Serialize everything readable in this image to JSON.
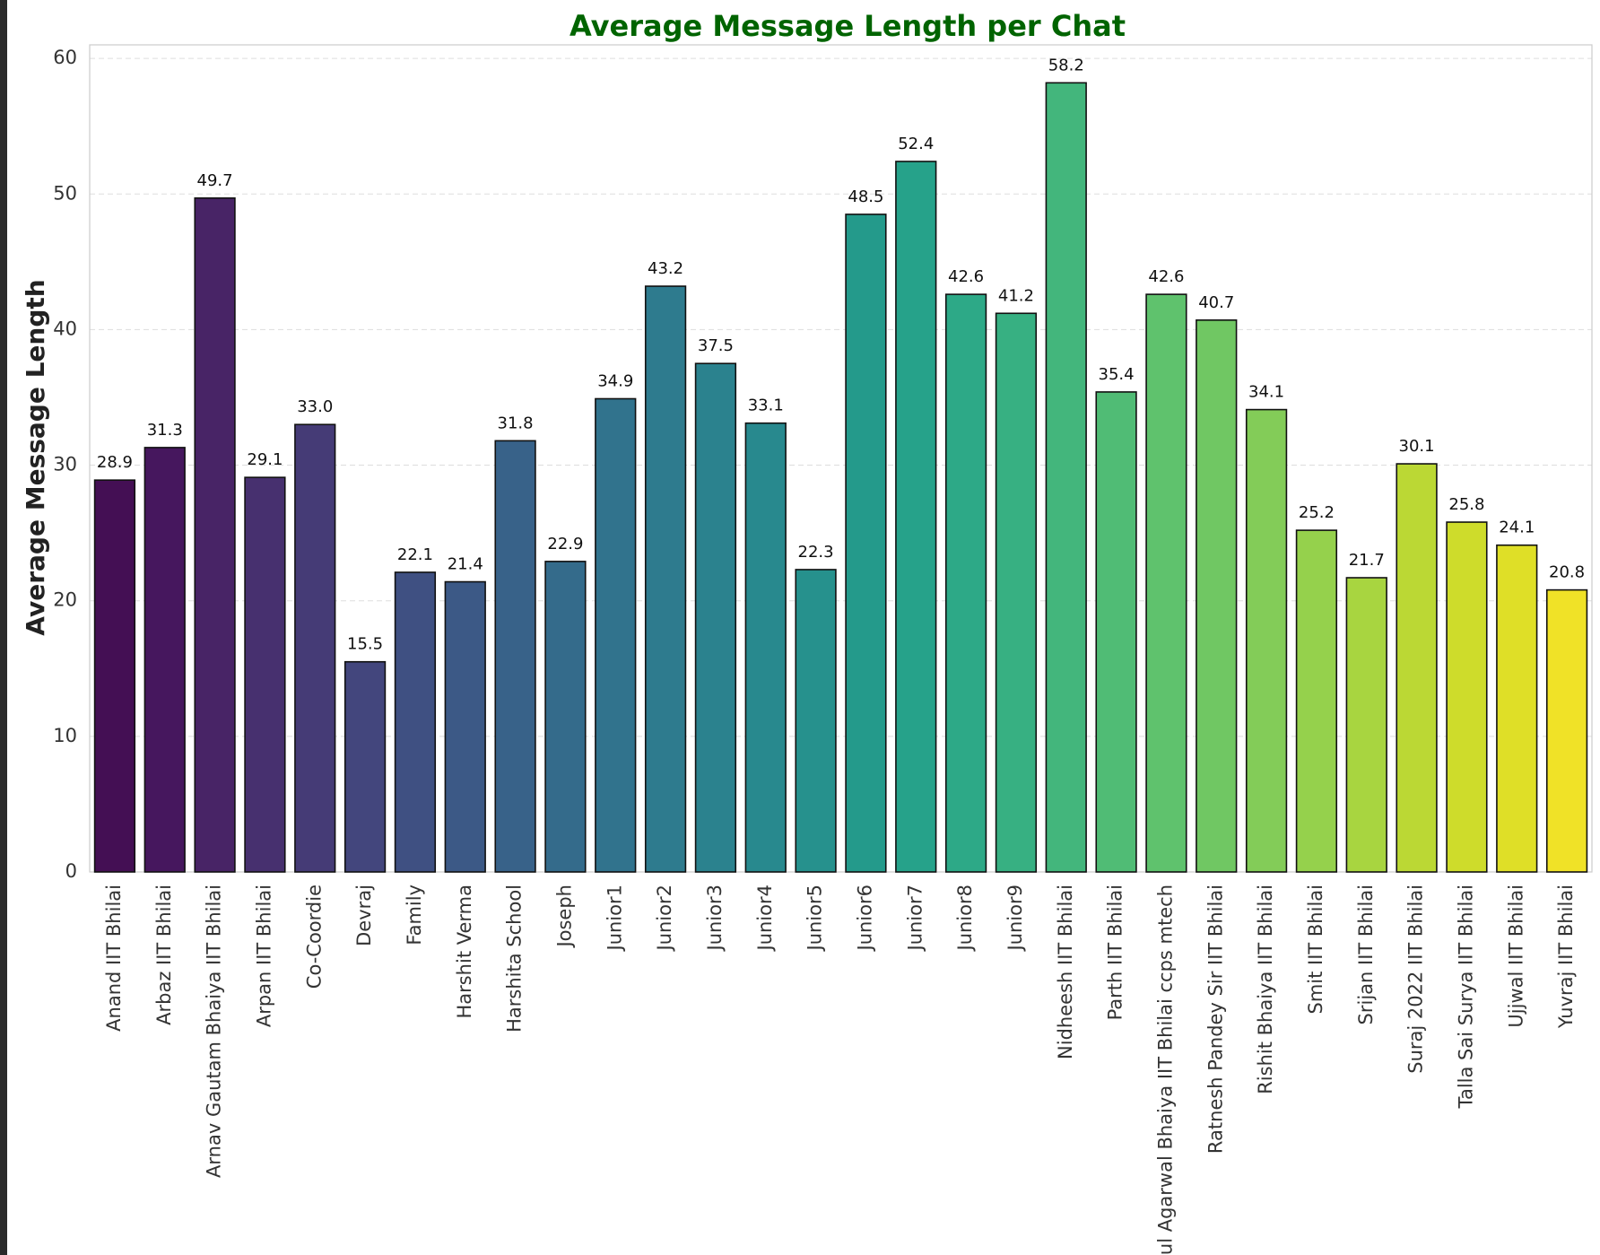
{
  "chart_data": {
    "type": "bar",
    "title": "Average Message Length per Chat",
    "title_color": "#006400",
    "xlabel": "",
    "ylabel": "Average Message Length",
    "ylim": [
      0,
      61
    ],
    "yticks": [
      0,
      10,
      20,
      30,
      40,
      50,
      60
    ],
    "grid": "y-dashed",
    "palette": "viridis",
    "categories": [
      "Anand IIT Bhilai",
      "Arbaz IIT Bhilai",
      "Arnav Gautam Bhaiya IIT Bhilai",
      "Arpan IIT Bhilai",
      "Co-Coordie",
      "Devraj",
      "Family",
      "Harshit Verma",
      "Harshita School",
      "Joseph",
      "Junior1",
      "Junior2",
      "Junior3",
      "Junior4",
      "Junior5",
      "Junior6",
      "Junior7",
      "Junior8",
      "Junior9",
      "Nidheesh IIT Bhilai",
      "Parth IIT Bhilai",
      "Mehul Agarwal Bhaiya IIT Bhilai ccps mtech",
      "Ratnesh Pandey Sir IIT Bhilai",
      "Rishit Bhaiya IIT Bhilai",
      "Smit IIT Bhilai",
      "Srijan IIT Bhilai",
      "Suraj 2022 IIT Bhilai",
      "Talla Sai Surya IIT Bhilai",
      "Ujjwal IIT Bhilai",
      "Yuvraj IIT Bhilai"
    ],
    "values": [
      28.9,
      31.3,
      49.7,
      29.1,
      33.0,
      15.5,
      22.1,
      21.4,
      31.8,
      22.9,
      34.9,
      43.2,
      37.5,
      33.1,
      22.3,
      48.5,
      52.4,
      42.6,
      41.2,
      58.2,
      35.4,
      42.6,
      40.7,
      34.1,
      25.2,
      21.7,
      30.1,
      25.8,
      24.1,
      20.8
    ],
    "value_labels": [
      "28.9",
      "31.3",
      "49.7",
      "29.1",
      "33.0",
      "15.5",
      "22.1",
      "21.4",
      "31.8",
      "22.9",
      "34.9",
      "43.2",
      "37.5",
      "33.1",
      "22.3",
      "48.5",
      "52.4",
      "42.6",
      "41.2",
      "58.2",
      "35.4",
      "42.6",
      "40.7",
      "34.1",
      "25.2",
      "21.7",
      "30.1",
      "25.8",
      "24.1",
      "20.8"
    ],
    "colors": [
      "#440f54",
      "#46175e",
      "#482466",
      "#47306f",
      "#453b76",
      "#43467d",
      "#3f5082",
      "#3c5986",
      "#386289",
      "#346b8b",
      "#31738d",
      "#2e7b8e",
      "#2b828e",
      "#28898e",
      "#26918d",
      "#249a8b",
      "#26a28a",
      "#2da987",
      "#37b082",
      "#43b67c",
      "#50bc75",
      "#5fc26d",
      "#70c763",
      "#83cc58",
      "#95d14c",
      "#a8d540",
      "#bbd834",
      "#cedc2b",
      "#dfdf27",
      "#f0e227"
    ]
  }
}
